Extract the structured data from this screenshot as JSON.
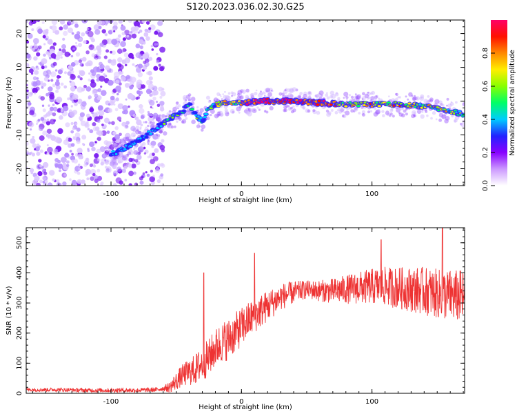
{
  "figure_title": "S120.2023.036.02.30.G25",
  "colors": {
    "snr_line": "#ee3333",
    "spectrum_low": "#8a2be2",
    "colormap": [
      "#ffffff",
      "#cc99ff",
      "#8800ff",
      "#2222ff",
      "#00ccff",
      "#00ff66",
      "#88ff00",
      "#ffee00",
      "#ff8800",
      "#ff1100",
      "#ff0066"
    ]
  },
  "chart_data": [
    {
      "type": "heatmap",
      "title": "",
      "xlabel": "Height of straight line (km)",
      "ylabel": "Frequency (Hz)",
      "xlim": [
        -165,
        171
      ],
      "ylim": [
        -25,
        24
      ],
      "xticks": [
        -100,
        0,
        100
      ],
      "yticks": [
        -20,
        -10,
        0,
        10,
        20
      ],
      "grid": false,
      "ridge": {
        "description_points_x": [
          -165,
          -95,
          -80,
          -65,
          -55,
          -45,
          -40,
          -35,
          -30,
          -25,
          -20,
          -10,
          0,
          20,
          40,
          60,
          80,
          100,
          120,
          140,
          160,
          171
        ],
        "description_points_y": [
          -22,
          -15,
          -12,
          -8,
          -5,
          -3,
          -1,
          -4,
          -6,
          -2,
          -1,
          -0.5,
          -0.5,
          0,
          0,
          -0.5,
          -1,
          -1,
          -1,
          -1.5,
          -3,
          -4
        ]
      },
      "colorbar": {
        "label": "Normalized spectral amplitude",
        "range": [
          0,
          1
        ],
        "ticks": [
          "0.0",
          "0.2",
          "0.4",
          "0.6",
          "0.8"
        ]
      }
    },
    {
      "type": "line",
      "title": "",
      "xlabel": "Height of straight line (km)",
      "ylabel": "SNR (10 * v/v)",
      "xlim": [
        -165,
        171
      ],
      "ylim": [
        0,
        550
      ],
      "xticks": [
        -100,
        0,
        100
      ],
      "yticks": [
        0,
        100,
        200,
        300,
        400,
        500
      ],
      "grid": false,
      "series": [
        {
          "name": "SNR",
          "trend_x": [
            -165,
            -140,
            -120,
            -100,
            -80,
            -65,
            -55,
            -50,
            -45,
            -40,
            -35,
            -30,
            -25,
            -20,
            -15,
            -10,
            -5,
            0,
            5,
            10,
            20,
            30,
            40,
            50,
            60,
            70,
            80,
            90,
            100,
            110,
            120,
            130,
            140,
            150,
            160,
            171
          ],
          "trend_y": [
            12,
            12,
            10,
            10,
            10,
            12,
            20,
            40,
            60,
            70,
            80,
            100,
            120,
            150,
            170,
            180,
            200,
            220,
            240,
            260,
            290,
            320,
            335,
            345,
            340,
            340,
            345,
            350,
            355,
            355,
            350,
            345,
            340,
            330,
            325,
            320
          ],
          "spread_x": [
            -165,
            -60,
            -50,
            -30,
            -10,
            10,
            50,
            100,
            140,
            171
          ],
          "spread_y": [
            6,
            8,
            30,
            60,
            70,
            60,
            30,
            60,
            80,
            90
          ],
          "peaks": [
            {
              "x": -29,
              "y": 400
            },
            {
              "x": 10,
              "y": 465
            },
            {
              "x": 107,
              "y": 510
            },
            {
              "x": 154,
              "y": 548
            }
          ]
        }
      ]
    }
  ]
}
